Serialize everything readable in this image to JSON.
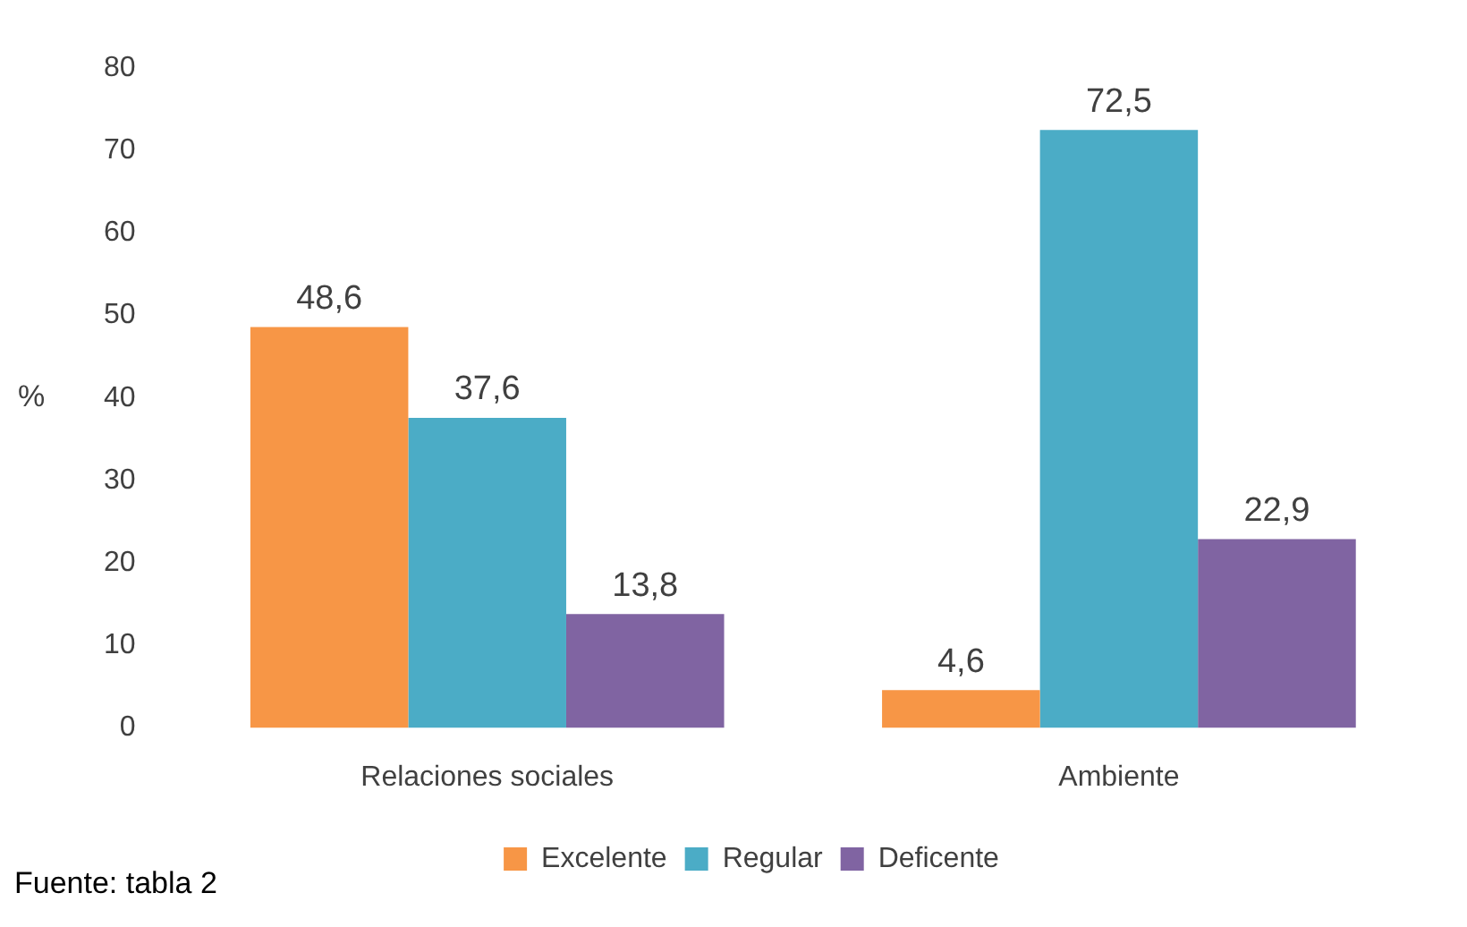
{
  "chart_data": {
    "type": "bar",
    "categories": [
      "Relaciones sociales",
      "Ambiente"
    ],
    "series": [
      {
        "name": "Excelente",
        "color": "#f79646",
        "values": [
          48.6,
          4.6
        ],
        "value_labels": [
          "48,6",
          "4,6"
        ]
      },
      {
        "name": "Regular",
        "color": "#4bacc6",
        "values": [
          37.6,
          72.5
        ],
        "value_labels": [
          "37,6",
          "72,5"
        ]
      },
      {
        "name": "Deficente",
        "color": "#8064a2",
        "values": [
          13.8,
          22.9
        ],
        "value_labels": [
          "13,8",
          "22,9"
        ]
      }
    ],
    "ylabel": "%",
    "ylim": [
      0,
      80
    ],
    "yticks": [
      0,
      10,
      20,
      30,
      40,
      50,
      60,
      70,
      80
    ],
    "grid": false,
    "legend": "bottom",
    "annotations": [
      "Fuente: tabla 2"
    ]
  }
}
